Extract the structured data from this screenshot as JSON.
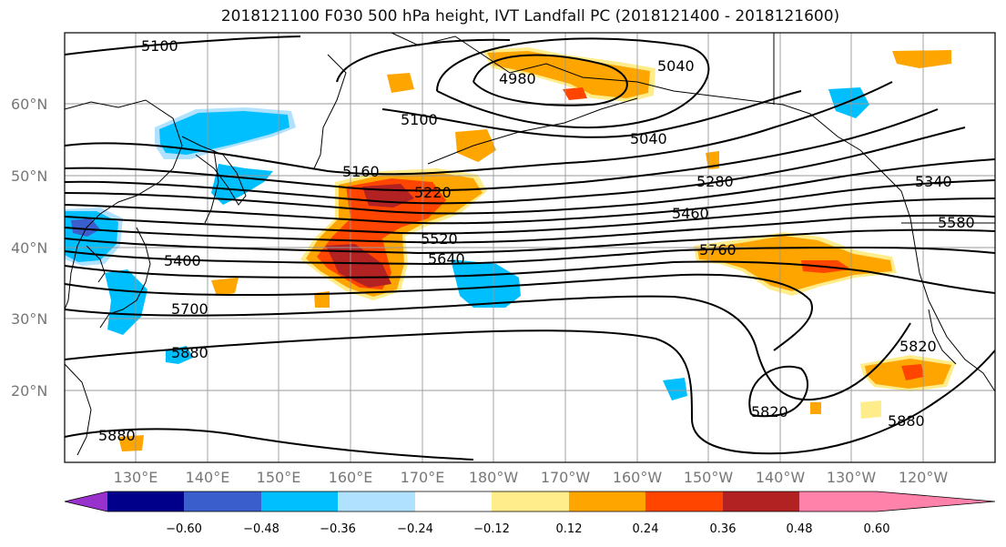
{
  "title": "2018121100 F030 500 hPa height, IVT Landfall PC (2018121400 - 2018121600)",
  "lat_labels": [
    "20°N",
    "30°N",
    "40°N",
    "50°N",
    "60°N"
  ],
  "lon_labels": [
    "130°E",
    "140°E",
    "150°E",
    "160°E",
    "170°E",
    "180°W",
    "170°W",
    "160°W",
    "150°W",
    "140°W",
    "130°W",
    "120°W"
  ],
  "contour_labels": [
    "5100",
    "4980",
    "5040",
    "5100",
    "5040",
    "5160",
    "5220",
    "5280",
    "5340",
    "5400",
    "5460",
    "5520",
    "5580",
    "5640",
    "5700",
    "5760",
    "5820",
    "5820",
    "5880",
    "5880",
    "5880"
  ],
  "colorbar": {
    "ticks": [
      "−0.60",
      "−0.48",
      "−0.36",
      "−0.24",
      "−0.12",
      "0.12",
      "0.24",
      "0.36",
      "0.48",
      "0.60"
    ],
    "colors": [
      "#9932cc",
      "#00008b",
      "#3a5fcd",
      "#00bfff",
      "#b0e2ff",
      "#ffffff",
      "#ffec8b",
      "#ffa500",
      "#ff4500",
      "#b22222",
      "#ff82ab"
    ]
  }
}
